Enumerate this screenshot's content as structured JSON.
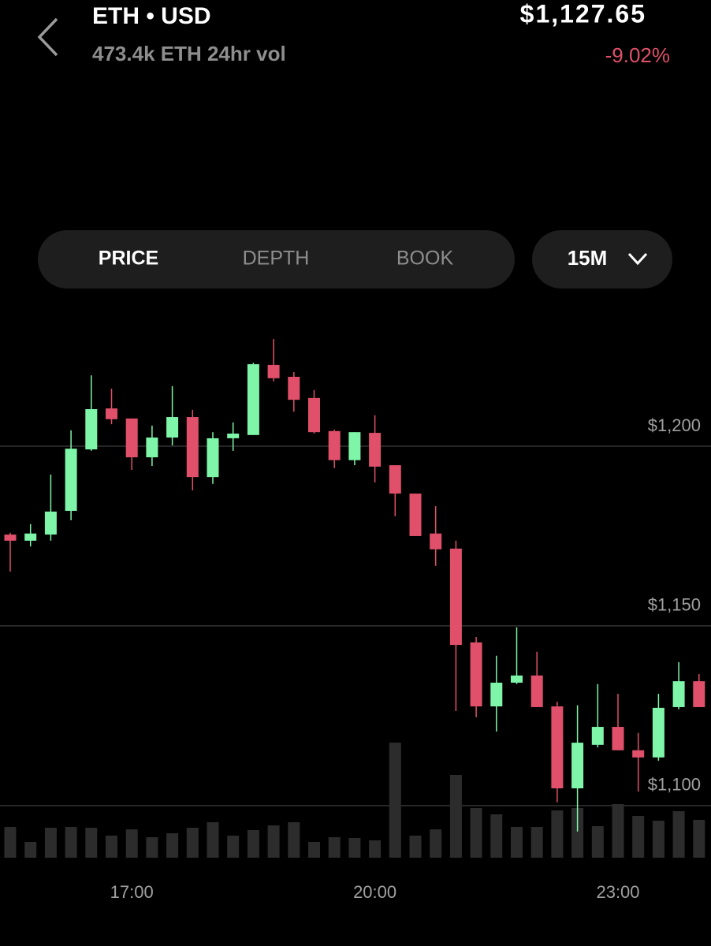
{
  "header": {
    "pair": "ETH • USD",
    "volume": "473.4k ETH 24hr vol",
    "price": "$1,127.65",
    "change": "-9.02%"
  },
  "tabs": {
    "items": [
      "PRICE",
      "DEPTH",
      "BOOK"
    ],
    "active": 0,
    "interval": "15M"
  },
  "chart_data": {
    "type": "candlestick",
    "categories": [
      null,
      null,
      null,
      null,
      null,
      null,
      "17:00",
      null,
      null,
      null,
      null,
      null,
      null,
      null,
      null,
      null,
      null,
      null,
      "20:00",
      null,
      null,
      null,
      null,
      null,
      null,
      null,
      null,
      null,
      null,
      null,
      "23:00",
      null,
      null,
      null,
      null
    ],
    "open": [
      1175.4,
      1173.7,
      1175.4,
      1182.0,
      1199.1,
      1210.5,
      1207.7,
      1196.9,
      1202.4,
      1208.1,
      1191.4,
      1202.2,
      1203.1,
      1222.6,
      1219.3,
      1213.4,
      1204.2,
      1196.1,
      1203.7,
      1194.7,
      1186.8,
      1175.7,
      1171.5,
      1145.4,
      1127.6,
      1134.2,
      1136.2,
      1127.6,
      1104.8,
      1116.9,
      1121.9,
      1115.4,
      1113.4,
      1127.4,
      1134.6
    ],
    "high": [
      1175.9,
      1178.3,
      1192.1,
      1204.4,
      1219.7,
      1216.0,
      1207.7,
      1205.7,
      1216.7,
      1210.1,
      1203.9,
      1206.6,
      1223.2,
      1229.8,
      1220.6,
      1215.6,
      1204.6,
      1203.9,
      1208.6,
      1194.7,
      1186.8,
      1183.3,
      1173.7,
      1146.9,
      1141.7,
      1149.6,
      1142.8,
      1128.9,
      1127.9,
      1133.8,
      1131.1,
      1120.2,
      1131.1,
      1139.9,
      1136.6
    ],
    "low": [
      1165.1,
      1172.1,
      1173.7,
      1179.4,
      1198.7,
      1206.1,
      1193.4,
      1194.5,
      1200.2,
      1187.7,
      1189.5,
      1198.7,
      1203.1,
      1218.0,
      1209.6,
      1203.5,
      1193.9,
      1194.7,
      1189.9,
      1180.5,
      1175.0,
      1166.7,
      1126.3,
      1124.6,
      1120.6,
      1133.8,
      1127.4,
      1100.9,
      1092.8,
      1116.2,
      1115.4,
      1103.9,
      1112.5,
      1126.8,
      1127.4
    ],
    "close": [
      1173.7,
      1175.7,
      1181.8,
      1199.3,
      1210.3,
      1207.5,
      1196.9,
      1202.4,
      1208.1,
      1191.4,
      1202.2,
      1203.5,
      1222.8,
      1218.9,
      1212.9,
      1203.9,
      1196.1,
      1203.9,
      1194.3,
      1186.8,
      1175.0,
      1171.3,
      1144.7,
      1127.6,
      1134.2,
      1136.2,
      1127.4,
      1104.8,
      1117.5,
      1121.9,
      1115.4,
      1113.4,
      1127.2,
      1134.6,
      1127.4
    ],
    "volume": [
      39,
      20,
      38,
      39,
      38,
      28,
      36,
      26,
      31,
      38,
      45,
      28,
      35,
      41,
      45,
      20,
      26,
      25,
      22,
      146,
      28,
      36,
      105,
      63,
      55,
      39,
      39,
      60,
      63,
      40,
      68,
      53,
      47,
      59,
      48
    ],
    "ylim": [
      1085.5,
      1236.4
    ],
    "yticks": [
      {
        "value": 1200,
        "label": "$1,200"
      },
      {
        "value": 1150,
        "label": "$1,150"
      },
      {
        "value": 1100,
        "label": "$1,100"
      }
    ],
    "grid": true,
    "up_color": "#7ef5a8",
    "down_color": "#e0506a",
    "volume_color": "#2c2c2c"
  }
}
